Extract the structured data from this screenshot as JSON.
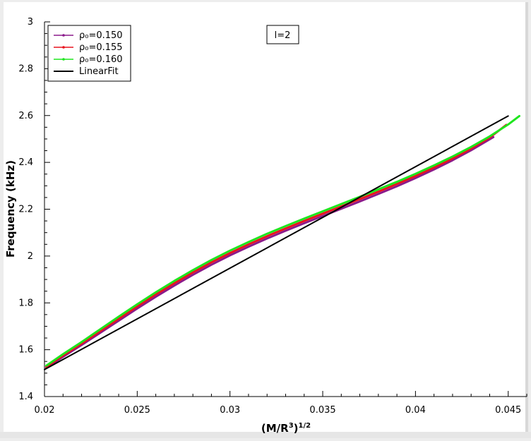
{
  "chart_data": {
    "type": "line",
    "title": "",
    "xlabel": "(M/R³)¹ᐟ²",
    "xlabel_main": "(M/R",
    "xlabel_sup1": "3",
    "xlabel_close": ")",
    "xlabel_sup2": "1/2",
    "ylabel": "Frequency (kHz)",
    "xlim": [
      0.02,
      0.046
    ],
    "ylim": [
      1.4,
      3.0
    ],
    "x_ticks": [
      0.02,
      0.025,
      0.03,
      0.035,
      0.04,
      0.045
    ],
    "x_tick_labels": [
      "0.02",
      "0.025",
      "0.03",
      "0.035",
      "0.04",
      "0.045"
    ],
    "y_ticks": [
      1.4,
      1.6,
      1.8,
      2.0,
      2.2,
      2.4,
      2.6,
      2.8,
      3.0
    ],
    "y_tick_labels": [
      "1.4",
      "1.6",
      "1.8",
      "2",
      "2.2",
      "2.4",
      "2.6",
      "2.8",
      "3"
    ],
    "annotation": "l=2",
    "legend_position": "top-left",
    "grid": false,
    "series": [
      {
        "name": "ρ₀=0.150",
        "color": "#8b1a8b",
        "x": [
          0.0201,
          0.021,
          0.022,
          0.023,
          0.024,
          0.025,
          0.026,
          0.027,
          0.028,
          0.029,
          0.03,
          0.031,
          0.032,
          0.033,
          0.034,
          0.035,
          0.036,
          0.037,
          0.038,
          0.039,
          0.04,
          0.041,
          0.042,
          0.043,
          0.0442
        ],
        "y": [
          1.523,
          1.57,
          1.62,
          1.672,
          1.724,
          1.776,
          1.826,
          1.874,
          1.92,
          1.963,
          2.003,
          2.04,
          2.075,
          2.108,
          2.14,
          2.171,
          2.202,
          2.233,
          2.265,
          2.298,
          2.333,
          2.37,
          2.409,
          2.452,
          2.508
        ]
      },
      {
        "name": "ρ₀=0.155",
        "color": "#e8141e",
        "x": [
          0.0201,
          0.021,
          0.022,
          0.023,
          0.024,
          0.025,
          0.026,
          0.027,
          0.028,
          0.029,
          0.03,
          0.031,
          0.032,
          0.033,
          0.034,
          0.035,
          0.036,
          0.037,
          0.038,
          0.039,
          0.04,
          0.041,
          0.042,
          0.043,
          0.044,
          0.0449
        ],
        "y": [
          1.527,
          1.575,
          1.626,
          1.679,
          1.732,
          1.785,
          1.836,
          1.884,
          1.93,
          1.973,
          2.013,
          2.05,
          2.085,
          2.118,
          2.15,
          2.181,
          2.212,
          2.243,
          2.275,
          2.308,
          2.342,
          2.378,
          2.417,
          2.459,
          2.506,
          2.56
        ]
      },
      {
        "name": "ρ₀=0.160",
        "color": "#1ee61e",
        "x": [
          0.0201,
          0.021,
          0.022,
          0.023,
          0.024,
          0.025,
          0.026,
          0.027,
          0.028,
          0.029,
          0.03,
          0.031,
          0.032,
          0.033,
          0.034,
          0.035,
          0.036,
          0.037,
          0.038,
          0.039,
          0.04,
          0.041,
          0.042,
          0.043,
          0.044,
          0.045,
          0.0456
        ],
        "y": [
          1.532,
          1.581,
          1.633,
          1.687,
          1.741,
          1.794,
          1.845,
          1.894,
          1.94,
          1.983,
          2.023,
          2.06,
          2.095,
          2.128,
          2.16,
          2.191,
          2.222,
          2.253,
          2.285,
          2.317,
          2.351,
          2.387,
          2.425,
          2.466,
          2.511,
          2.562,
          2.598
        ]
      },
      {
        "name": "LinearFit",
        "color": "#000000",
        "x": [
          0.02,
          0.045
        ],
        "y": [
          1.515,
          2.598
        ]
      }
    ]
  }
}
